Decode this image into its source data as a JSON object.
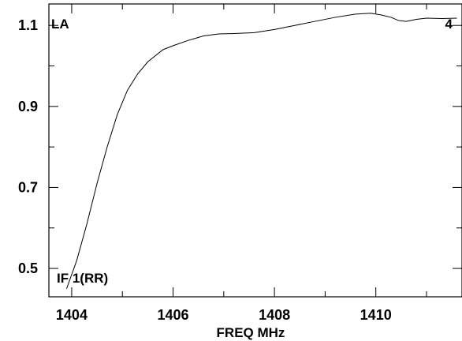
{
  "chart_data": {
    "type": "line",
    "title": "",
    "xlabel": "FREQ MHz",
    "ylabel": "",
    "xlim": [
      1403.55,
      1411.7
    ],
    "ylim": [
      0.43,
      1.153
    ],
    "x_ticks": [
      1404,
      1406,
      1408,
      1410
    ],
    "x_tick_labels": [
      "1404",
      "1406",
      "1408",
      "1410"
    ],
    "y_ticks": [
      0.5,
      0.7,
      0.9,
      1.1
    ],
    "y_tick_labels": [
      "0.5",
      "0.7",
      "0.9",
      "1.1"
    ],
    "annotations": {
      "top_left": "LA",
      "top_right": "4",
      "bottom_left": "IF 1(RR)"
    },
    "grid": false,
    "legend": "none",
    "series": [
      {
        "x": [
          1403.9,
          1404.1,
          1404.3,
          1404.5,
          1404.7,
          1404.9,
          1405.1,
          1405.3,
          1405.5,
          1405.8,
          1406.0,
          1406.3,
          1406.6,
          1406.9,
          1407.2,
          1407.6,
          1408.0,
          1408.4,
          1408.8,
          1409.2,
          1409.6,
          1409.9,
          1410.1,
          1410.3,
          1410.45,
          1410.6,
          1410.8,
          1411.0,
          1411.3,
          1411.6
        ],
        "values": [
          0.45,
          0.52,
          0.61,
          0.71,
          0.8,
          0.88,
          0.94,
          0.98,
          1.01,
          1.04,
          1.05,
          1.063,
          1.074,
          1.079,
          1.08,
          1.082,
          1.09,
          1.1,
          1.11,
          1.12,
          1.128,
          1.13,
          1.126,
          1.12,
          1.112,
          1.11,
          1.115,
          1.118,
          1.117,
          1.118
        ]
      }
    ],
    "colors": {
      "line": "#000000",
      "axes": "#000000",
      "background": "#ffffff"
    }
  }
}
